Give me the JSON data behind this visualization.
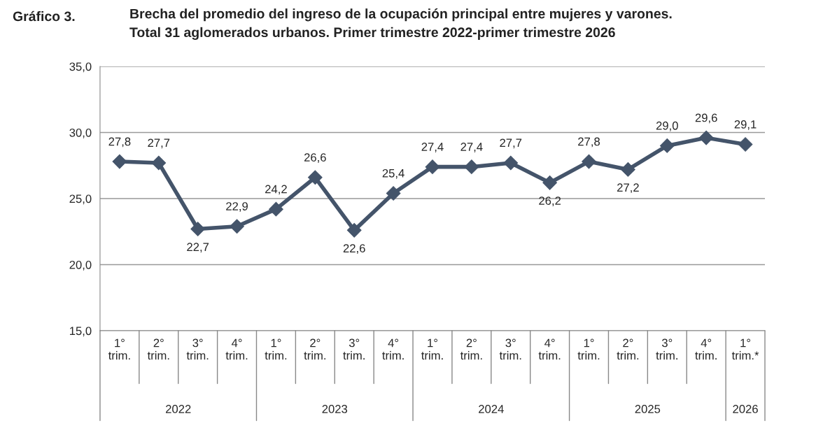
{
  "chart_data": {
    "type": "line",
    "title": "Brecha del promedio del ingreso de la ocupación principal entre mujeres y varones.\nTotal 31 aglomerados urbanos. Primer trimestre 2022-primer trimestre 2026",
    "annotations": [
      "Gráfico 3.",
      "2022",
      "2023",
      "2024",
      "2025",
      "2026"
    ],
    "categories": [
      "1°\ntrim.",
      "2°\ntrim.",
      "3°\ntrim.",
      "4°\ntrim.",
      "1°\ntrim.",
      "2°\ntrim.",
      "3°\ntrim.",
      "4°\ntrim.",
      "1°\ntrim.",
      "2°\ntrim.",
      "3°\ntrim.",
      "4°\ntrim.",
      "1°\ntrim.",
      "2°\ntrim.",
      "3°\ntrim.",
      "4°\ntrim.",
      "1°\ntrim.*"
    ],
    "series": [
      {
        "color": "#44546a",
        "values": [
          27.8,
          27.7,
          22.7,
          22.9,
          24.2,
          26.6,
          22.6,
          25.4,
          27.4,
          27.4,
          27.7,
          26.2,
          27.8,
          27.2,
          29.0,
          29.6,
          29.1
        ]
      }
    ],
    "value_labels": [
      "27,8",
      "27,7",
      "22,7",
      "22,9",
      "24,2",
      "26,6",
      "22,6",
      "25,4",
      "27,4",
      "27,4",
      "27,7",
      "26,2",
      "27,8",
      "27,2",
      "29,0",
      "29,6",
      "29,1"
    ],
    "ylim": [
      15,
      35
    ],
    "yticks": [
      {
        "value": 15,
        "label": "15,0"
      },
      {
        "value": 20,
        "label": "20,0"
      },
      {
        "value": 25,
        "label": "25,0"
      },
      {
        "value": 30,
        "label": "30,0"
      },
      {
        "value": 35,
        "label": "35,0"
      }
    ],
    "grid": "y",
    "marker": "diamond",
    "line_style": "solid"
  }
}
